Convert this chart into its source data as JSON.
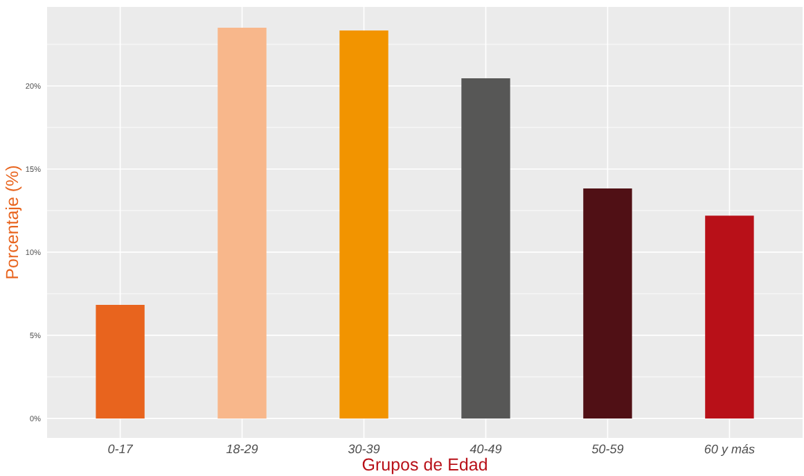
{
  "chart_data": {
    "type": "bar",
    "xlabel": "Grupos de Edad",
    "ylabel": "Porcentaje (%)",
    "categories": [
      "0-17",
      "18-29",
      "30-39",
      "40-49",
      "50-59",
      "60 y más"
    ],
    "values": [
      6.83,
      23.5,
      23.33,
      20.46,
      13.83,
      12.2
    ],
    "colors": [
      "#e8641e",
      "#f8b78b",
      "#f29400",
      "#575756",
      "#501015",
      "#b81018"
    ],
    "ylim": [
      -1.17,
      24.75
    ],
    "yticks": [
      {
        "value": 0,
        "label": "0%"
      },
      {
        "value": 5,
        "label": "5%"
      },
      {
        "value": 10,
        "label": "10%"
      },
      {
        "value": 15,
        "label": "15%"
      },
      {
        "value": 20,
        "label": "20%"
      }
    ],
    "grid": true,
    "legend": false
  }
}
